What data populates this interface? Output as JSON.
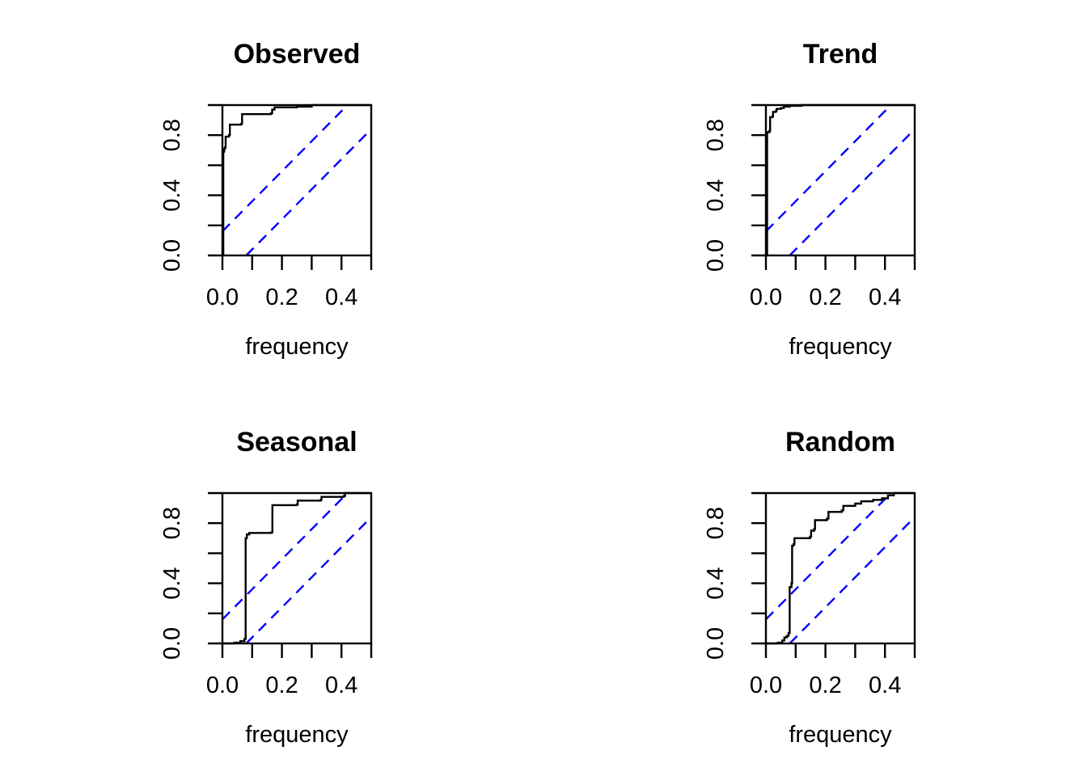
{
  "figure": {
    "background": "#ffffff",
    "layout": "2x2-grid"
  },
  "chart_data": [
    {
      "type": "step-line",
      "title": "Observed",
      "xlabel": "frequency",
      "xlim": [
        0,
        0.5
      ],
      "ylim": [
        0,
        1
      ],
      "xticks": [
        0,
        0.1,
        0.2,
        0.3,
        0.4,
        0.5
      ],
      "xtick_labels": [
        {
          "value": 0.0,
          "text": "0.0"
        },
        {
          "value": 0.2,
          "text": "0.2"
        },
        {
          "value": 0.4,
          "text": "0.4"
        }
      ],
      "yticks": [
        0,
        0.2,
        0.4,
        0.6,
        0.8,
        1
      ],
      "ytick_labels": [
        {
          "value": 0.0,
          "text": "0.0"
        },
        {
          "value": 0.4,
          "text": "0.4"
        },
        {
          "value": 0.8,
          "text": "0.8"
        }
      ],
      "grid": false,
      "curve_color": "#000000",
      "band": {
        "color": "#0000ff",
        "slope": 2,
        "intercept": 0.16,
        "style": "dashed"
      },
      "steps": [
        [
          0,
          0
        ],
        [
          0.003,
          0.69
        ],
        [
          0.006,
          0.71
        ],
        [
          0.009,
          0.72
        ],
        [
          0.011,
          0.79
        ],
        [
          0.022,
          0.8
        ],
        [
          0.025,
          0.87
        ],
        [
          0.062,
          0.875
        ],
        [
          0.066,
          0.94
        ],
        [
          0.163,
          0.945
        ],
        [
          0.167,
          0.97
        ],
        [
          0.175,
          0.985
        ],
        [
          0.25,
          0.99
        ],
        [
          0.3,
          1.0
        ],
        [
          0.5,
          1.0
        ]
      ]
    },
    {
      "type": "step-line",
      "title": "Trend",
      "xlabel": "frequency",
      "xlim": [
        0,
        0.5
      ],
      "ylim": [
        0,
        1
      ],
      "xticks": [
        0,
        0.1,
        0.2,
        0.3,
        0.4,
        0.5
      ],
      "xtick_labels": [
        {
          "value": 0.0,
          "text": "0.0"
        },
        {
          "value": 0.2,
          "text": "0.2"
        },
        {
          "value": 0.4,
          "text": "0.4"
        }
      ],
      "yticks": [
        0,
        0.2,
        0.4,
        0.6,
        0.8,
        1
      ],
      "ytick_labels": [
        {
          "value": 0.0,
          "text": "0.0"
        },
        {
          "value": 0.4,
          "text": "0.4"
        },
        {
          "value": 0.8,
          "text": "0.8"
        }
      ],
      "grid": false,
      "curve_color": "#000000",
      "band": {
        "color": "#0000ff",
        "slope": 2,
        "intercept": 0.16,
        "style": "dashed"
      },
      "steps": [
        [
          0,
          0
        ],
        [
          0.004,
          0.82
        ],
        [
          0.012,
          0.83
        ],
        [
          0.014,
          0.92
        ],
        [
          0.022,
          0.925
        ],
        [
          0.024,
          0.955
        ],
        [
          0.033,
          0.96
        ],
        [
          0.036,
          0.975
        ],
        [
          0.05,
          0.98
        ],
        [
          0.06,
          0.99
        ],
        [
          0.08,
          0.995
        ],
        [
          0.12,
          1.0
        ],
        [
          0.5,
          1.0
        ]
      ]
    },
    {
      "type": "step-line",
      "title": "Seasonal",
      "xlabel": "frequency",
      "xlim": [
        0,
        0.5
      ],
      "ylim": [
        0,
        1
      ],
      "xticks": [
        0,
        0.1,
        0.2,
        0.3,
        0.4,
        0.5
      ],
      "xtick_labels": [
        {
          "value": 0.0,
          "text": "0.0"
        },
        {
          "value": 0.2,
          "text": "0.2"
        },
        {
          "value": 0.4,
          "text": "0.4"
        }
      ],
      "yticks": [
        0,
        0.2,
        0.4,
        0.6,
        0.8,
        1
      ],
      "ytick_labels": [
        {
          "value": 0.0,
          "text": "0.0"
        },
        {
          "value": 0.4,
          "text": "0.4"
        },
        {
          "value": 0.8,
          "text": "0.8"
        }
      ],
      "grid": false,
      "curve_color": "#000000",
      "band": {
        "color": "#0000ff",
        "slope": 2,
        "intercept": 0.16,
        "style": "dashed"
      },
      "steps": [
        [
          0,
          0
        ],
        [
          0.04,
          0.005
        ],
        [
          0.06,
          0.015
        ],
        [
          0.074,
          0.03
        ],
        [
          0.078,
          0.7
        ],
        [
          0.082,
          0.725
        ],
        [
          0.09,
          0.735
        ],
        [
          0.165,
          0.74
        ],
        [
          0.168,
          0.92
        ],
        [
          0.25,
          0.925
        ],
        [
          0.253,
          0.95
        ],
        [
          0.33,
          0.955
        ],
        [
          0.333,
          0.975
        ],
        [
          0.408,
          0.98
        ],
        [
          0.412,
          1.0
        ],
        [
          0.5,
          1.0
        ]
      ]
    },
    {
      "type": "step-line",
      "title": "Random",
      "xlabel": "frequency",
      "xlim": [
        0,
        0.5
      ],
      "ylim": [
        0,
        1
      ],
      "xticks": [
        0,
        0.1,
        0.2,
        0.3,
        0.4,
        0.5
      ],
      "xtick_labels": [
        {
          "value": 0.0,
          "text": "0.0"
        },
        {
          "value": 0.2,
          "text": "0.2"
        },
        {
          "value": 0.4,
          "text": "0.4"
        }
      ],
      "yticks": [
        0,
        0.2,
        0.4,
        0.6,
        0.8,
        1
      ],
      "ytick_labels": [
        {
          "value": 0.0,
          "text": "0.0"
        },
        {
          "value": 0.4,
          "text": "0.4"
        },
        {
          "value": 0.8,
          "text": "0.8"
        }
      ],
      "grid": false,
      "curve_color": "#000000",
      "band": {
        "color": "#0000ff",
        "slope": 2,
        "intercept": 0.16,
        "style": "dashed"
      },
      "steps": [
        [
          0,
          0
        ],
        [
          0.04,
          0.005
        ],
        [
          0.055,
          0.02
        ],
        [
          0.062,
          0.04
        ],
        [
          0.07,
          0.05
        ],
        [
          0.076,
          0.07
        ],
        [
          0.08,
          0.375
        ],
        [
          0.086,
          0.4
        ],
        [
          0.088,
          0.65
        ],
        [
          0.093,
          0.66
        ],
        [
          0.096,
          0.7
        ],
        [
          0.148,
          0.71
        ],
        [
          0.152,
          0.75
        ],
        [
          0.162,
          0.76
        ],
        [
          0.165,
          0.82
        ],
        [
          0.205,
          0.83
        ],
        [
          0.21,
          0.875
        ],
        [
          0.255,
          0.885
        ],
        [
          0.26,
          0.915
        ],
        [
          0.3,
          0.93
        ],
        [
          0.32,
          0.945
        ],
        [
          0.36,
          0.955
        ],
        [
          0.39,
          0.965
        ],
        [
          0.41,
          0.985
        ],
        [
          0.43,
          1.0
        ],
        [
          0.5,
          1.0
        ]
      ]
    }
  ]
}
